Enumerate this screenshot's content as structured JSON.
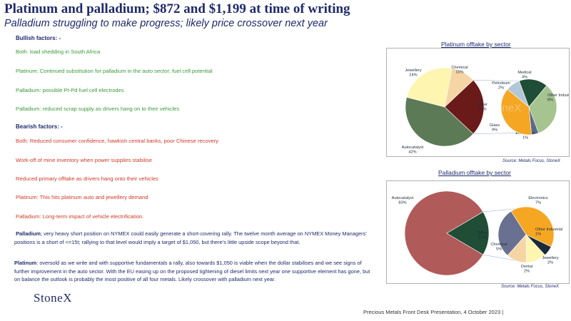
{
  "title": "Platinum and palladium; $872 and $1,199 at time of writing",
  "subtitle": "Palladium struggling to make progress; likely price crossover next year",
  "bullish": {
    "heading": "Bullish factors: -",
    "items": [
      "Both: load shedding in South Africa",
      "Platinum: Continued substitution for palladium in the auto sector; fuel cell potential",
      "Palladium: possible Pt-Pd fuel cell electrodes",
      "Palladium: reduced scrap supply as drivers hang on to their vehicles"
    ]
  },
  "bearish": {
    "heading": "Bearish factors: -",
    "items": [
      "Both: Reduced consumer confidence, hawkish central banks, poor Chinese recovery",
      "Work-off of mine inventory when power supplies stabilise",
      "Reduced primary offtake as drivers hang onto their vehicles",
      "Platinum:  This hits platinum auto and jewellery demand",
      "Palladium:  Long-term impact of vehicle electrification."
    ]
  },
  "paragraphs": {
    "palladium_lead": "Palladium",
    "palladium_text": "; very heavy short position on NYMEX could easily generate a short-covering rally.  The twelve month average on NYMEX Money Managers’ positions is a short of <=15t; rallying to that level would imply a target of $1,050,  but there’s little upside scope beyond that.",
    "platinum_lead": "Platinum",
    "platinum_text": ": oversold as we write and with supportive fundamentals a rally, also  towards $1,050 is viable when the dollar stabilises and we see signs of further improvement in the auto sector.  With the EU easing up on the proposed tightening of diesel limits next year one supportive element has gone, but on balance the outlook is probably  the most positive of all four metals.  Likely crossover with palladium next year."
  },
  "logo": "StoneX",
  "footer": "Precious Metals Front Desk Presentation, 4 October 2023 |",
  "chart_data": [
    {
      "type": "pie",
      "title": "Platinum offtake by sector",
      "source": "Source: Metals Focus, StoneX",
      "watermark": "StoneX",
      "main": [
        {
          "label": "Autocatalyst",
          "value": 42,
          "display": "42%",
          "color": "#5b7a55"
        },
        {
          "label": "Jewellery",
          "value": 24,
          "display": "24%",
          "color": "#fdf5b0"
        },
        {
          "label": "Chemical",
          "value": 10,
          "display": "10%",
          "color": "#f6d5a5"
        },
        {
          "label": "Other",
          "value": 24,
          "display": "24%",
          "color": "#6b1a1a"
        }
      ],
      "breakout": [
        {
          "label": "Petroleum",
          "value": 2,
          "display": "2%",
          "color": "#b4c7d8"
        },
        {
          "label": "Medical",
          "value": 4,
          "display": "4%",
          "color": "#1f4d35"
        },
        {
          "label": "Other Industrial",
          "value": 8,
          "display": "8%",
          "color": "#a5c48f"
        },
        {
          "label": "Electronics",
          "value": 1,
          "display": "1%",
          "color": "#5a6a8a"
        },
        {
          "label": "Glass",
          "value": 9,
          "display": "9%",
          "color": "#f5a623"
        }
      ]
    },
    {
      "type": "pie",
      "title": "Palladium offtake by sector",
      "source": "Source: Metals Focus, StoneX",
      "main": [
        {
          "label": "Autocatalyst",
          "value": 83,
          "display": "83%",
          "color": "#b05a5a"
        },
        {
          "label": "Other",
          "value": 17,
          "display": "17%",
          "color": "#1f4d35"
        }
      ],
      "breakout": [
        {
          "label": "Electronics",
          "value": 7,
          "display": "7%",
          "color": "#f5a623"
        },
        {
          "label": "Other Industrial",
          "value": 1,
          "display": "1%",
          "color": "#1a2a3a"
        },
        {
          "label": "Jewellery",
          "value": 2,
          "display": "2%",
          "color": "#fdf5b0"
        },
        {
          "label": "Dental",
          "value": 2,
          "display": "2%",
          "color": "#f6d5a5"
        },
        {
          "label": "Chemical",
          "value": 5,
          "display": "5%",
          "color": "#6a7090"
        }
      ]
    }
  ]
}
